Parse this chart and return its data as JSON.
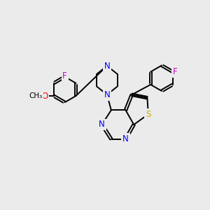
{
  "bg_color": "#ebebeb",
  "bond_color": "#000000",
  "N_color": "#0000ff",
  "O_color": "#ff0000",
  "S_color": "#ccaa00",
  "F_color": "#cc00cc",
  "line_width": 1.4,
  "font_size": 8.5,
  "fig_w": 3.0,
  "fig_h": 3.0,
  "dpi": 100,
  "xlim": [
    0,
    10
  ],
  "ylim": [
    0,
    10
  ]
}
